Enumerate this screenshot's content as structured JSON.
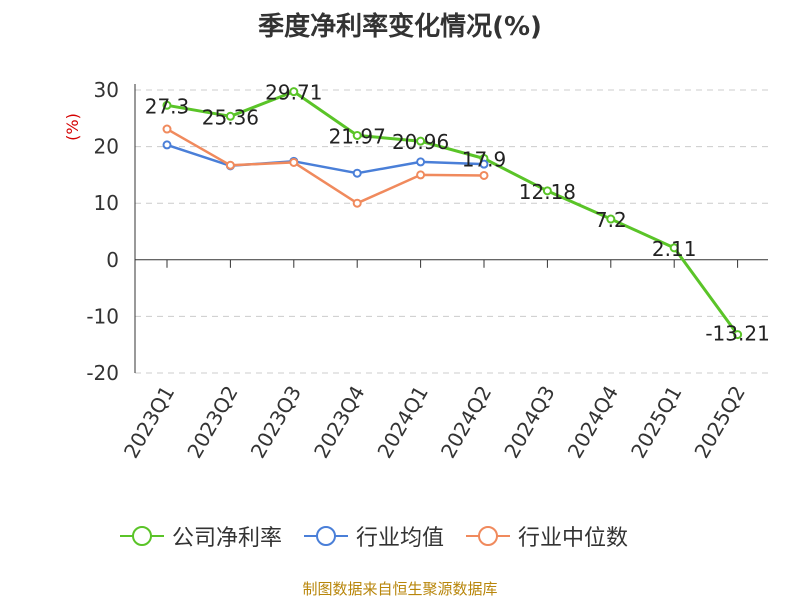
{
  "chart_data": {
    "type": "line",
    "title": "季度净利率变化情况(%)",
    "ylabel": "(%)",
    "xlabel": "",
    "categories": [
      "2023Q1",
      "2023Q2",
      "2023Q3",
      "2023Q4",
      "2024Q1",
      "2024Q2",
      "2024Q3",
      "2024Q4",
      "2025Q1",
      "2025Q2"
    ],
    "ylim": [
      -20,
      30
    ],
    "yticks": [
      -20,
      -10,
      0,
      10,
      20,
      30
    ],
    "grid": true,
    "legend_position": "bottom",
    "series": [
      {
        "name": "公司净利率",
        "color": "#5ac428",
        "values": [
          27.3,
          25.36,
          29.71,
          21.97,
          20.96,
          17.9,
          12.18,
          7.2,
          2.11,
          -13.21
        ],
        "labels": [
          "27.3",
          "25.36",
          "29.71",
          "21.97",
          "20.96",
          "17.9",
          "12.18",
          "7.2",
          "2.11",
          "-13.21"
        ]
      },
      {
        "name": "行业均值",
        "color": "#4a7fd8",
        "values": [
          20.3,
          16.6,
          17.4,
          15.3,
          17.3,
          16.9,
          null,
          null,
          null,
          null
        ]
      },
      {
        "name": "行业中位数",
        "color": "#f08a5d",
        "values": [
          23.1,
          16.7,
          17.2,
          10.0,
          15.0,
          14.9,
          null,
          null,
          null,
          null
        ]
      }
    ]
  },
  "footer": {
    "source": "制图数据来自恒生聚源数据库"
  }
}
